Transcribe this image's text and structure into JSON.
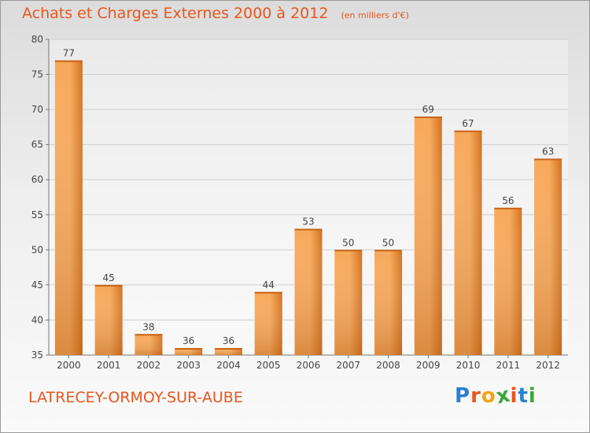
{
  "header": {
    "title": "Achats et Charges Externes 2000 à 2012",
    "unit": "(en milliers d'€)"
  },
  "footer": {
    "commune": "LATRECEY-ORMOY-SUR-AUBE",
    "logo_letters": [
      "P",
      "r",
      "o",
      "x",
      "i",
      "t",
      "i"
    ],
    "logo_colors": [
      "#2b7fd4",
      "#e8561e",
      "#f2a516",
      "#3aa635",
      "#e8561e",
      "#2b7fd4",
      "#3aa635"
    ]
  },
  "chart_data": {
    "type": "bar",
    "title": "Achats et Charges Externes 2000 à 2012",
    "subtitle": "(en milliers d'€)",
    "categories": [
      "2000",
      "2001",
      "2002",
      "2003",
      "2004",
      "2005",
      "2006",
      "2007",
      "2008",
      "2009",
      "2010",
      "2011",
      "2012"
    ],
    "values": [
      77,
      45,
      38,
      36,
      36,
      44,
      53,
      50,
      50,
      69,
      67,
      56,
      63
    ],
    "ylim": [
      35,
      80
    ],
    "yticks": [
      35,
      40,
      45,
      50,
      55,
      60,
      65,
      70,
      75,
      80
    ],
    "grid": true,
    "legend": "none",
    "bar_color_light": "#f7a95a",
    "bar_color_dark": "#d4721e"
  }
}
